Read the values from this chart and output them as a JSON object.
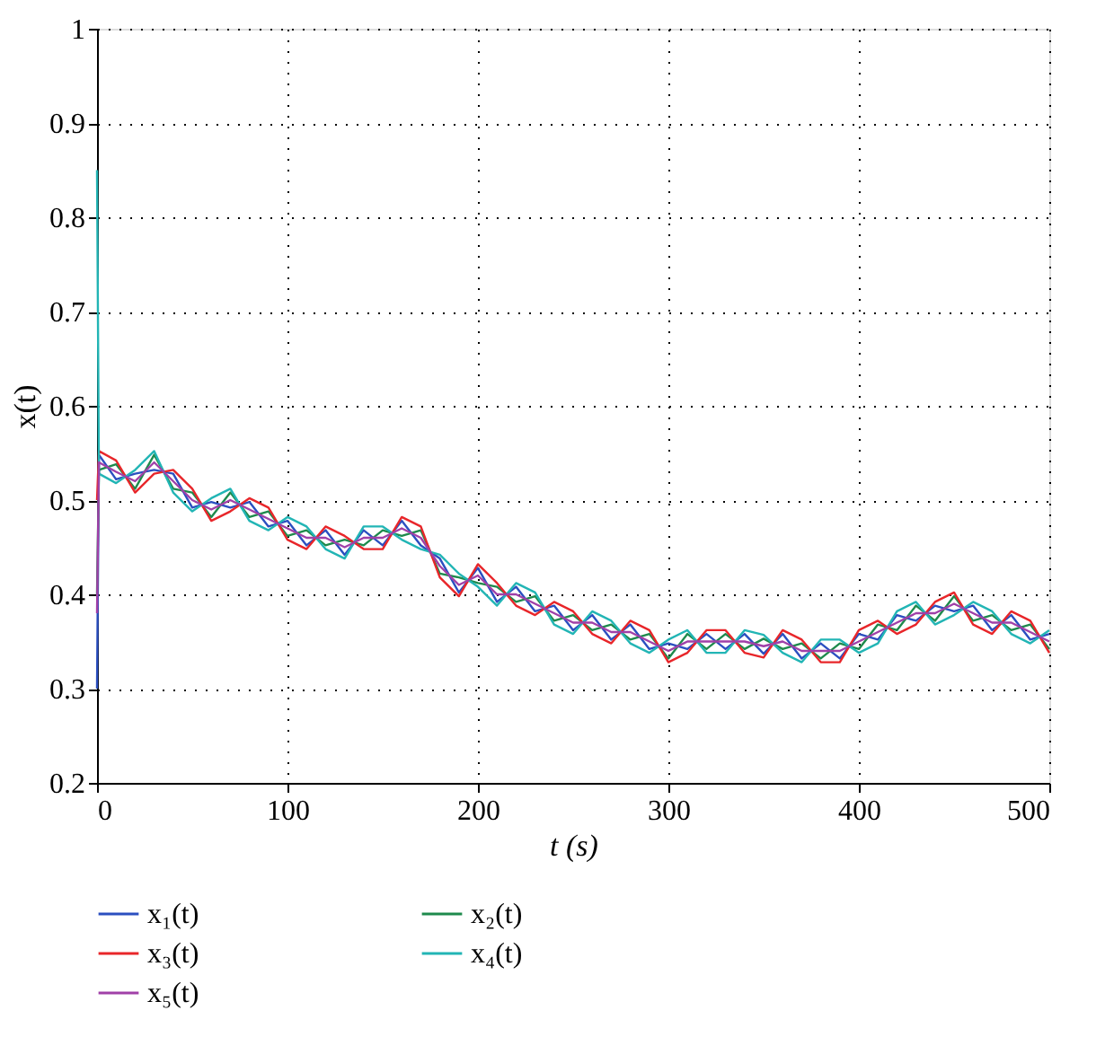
{
  "chart_data": {
    "type": "line",
    "xlabel": "t (s)",
    "ylabel": "x(t)",
    "x": [
      0,
      1,
      10,
      20,
      30,
      40,
      50,
      60,
      70,
      80,
      90,
      100,
      110,
      120,
      130,
      140,
      150,
      160,
      170,
      180,
      190,
      200,
      210,
      220,
      230,
      240,
      250,
      260,
      270,
      280,
      290,
      300,
      310,
      320,
      330,
      340,
      350,
      360,
      370,
      380,
      390,
      400,
      410,
      420,
      430,
      440,
      450,
      460,
      470,
      480,
      490,
      500
    ],
    "series": [
      {
        "name": "x₁(t)",
        "color": "#2b4fc0",
        "values": [
          0.3,
          0.548,
          0.522,
          0.528,
          0.532,
          0.528,
          0.492,
          0.498,
          0.492,
          0.498,
          0.472,
          0.478,
          0.452,
          0.468,
          0.442,
          0.468,
          0.452,
          0.478,
          0.452,
          0.438,
          0.402,
          0.428,
          0.392,
          0.408,
          0.382,
          0.388,
          0.362,
          0.378,
          0.352,
          0.368,
          0.342,
          0.348,
          0.342,
          0.358,
          0.342,
          0.358,
          0.337,
          0.358,
          0.332,
          0.348,
          0.332,
          0.358,
          0.352,
          0.378,
          0.372,
          0.388,
          0.382,
          0.388,
          0.362,
          0.378,
          0.352,
          0.358
        ]
      },
      {
        "name": "x₂(t)",
        "color": "#1e8a4c",
        "values": [
          0.4,
          0.532,
          0.538,
          0.512,
          0.548,
          0.512,
          0.508,
          0.482,
          0.508,
          0.482,
          0.488,
          0.462,
          0.468,
          0.452,
          0.458,
          0.452,
          0.468,
          0.462,
          0.468,
          0.422,
          0.418,
          0.412,
          0.408,
          0.392,
          0.398,
          0.372,
          0.378,
          0.362,
          0.368,
          0.352,
          0.358,
          0.332,
          0.358,
          0.342,
          0.358,
          0.342,
          0.353,
          0.342,
          0.348,
          0.332,
          0.348,
          0.342,
          0.368,
          0.362,
          0.388,
          0.372,
          0.398,
          0.372,
          0.378,
          0.362,
          0.368,
          0.342
        ]
      },
      {
        "name": "x₃(t)",
        "color": "#e8262a",
        "values": [
          0.5,
          0.552,
          0.542,
          0.508,
          0.528,
          0.532,
          0.512,
          0.478,
          0.488,
          0.502,
          0.492,
          0.458,
          0.448,
          0.472,
          0.462,
          0.448,
          0.448,
          0.482,
          0.472,
          0.418,
          0.398,
          0.432,
          0.412,
          0.388,
          0.378,
          0.392,
          0.382,
          0.358,
          0.348,
          0.372,
          0.362,
          0.328,
          0.338,
          0.362,
          0.362,
          0.338,
          0.333,
          0.362,
          0.352,
          0.328,
          0.328,
          0.362,
          0.372,
          0.358,
          0.368,
          0.392,
          0.402,
          0.368,
          0.358,
          0.382,
          0.372,
          0.338
        ]
      },
      {
        "name": "x₄(t)",
        "color": "#22b5b5",
        "values": [
          0.85,
          0.528,
          0.518,
          0.532,
          0.552,
          0.508,
          0.488,
          0.502,
          0.512,
          0.478,
          0.468,
          0.482,
          0.472,
          0.448,
          0.438,
          0.472,
          0.472,
          0.458,
          0.448,
          0.442,
          0.422,
          0.408,
          0.388,
          0.412,
          0.402,
          0.368,
          0.358,
          0.382,
          0.372,
          0.348,
          0.338,
          0.352,
          0.362,
          0.338,
          0.338,
          0.362,
          0.357,
          0.338,
          0.328,
          0.352,
          0.352,
          0.338,
          0.348,
          0.382,
          0.392,
          0.368,
          0.378,
          0.392,
          0.382,
          0.358,
          0.348,
          0.362
        ]
      },
      {
        "name": "x₅(t)",
        "color": "#a040a8",
        "values": [
          0.38,
          0.54,
          0.53,
          0.52,
          0.54,
          0.52,
          0.5,
          0.49,
          0.5,
          0.49,
          0.48,
          0.47,
          0.46,
          0.46,
          0.45,
          0.46,
          0.46,
          0.47,
          0.46,
          0.43,
          0.41,
          0.42,
          0.4,
          0.4,
          0.39,
          0.38,
          0.37,
          0.37,
          0.36,
          0.36,
          0.35,
          0.34,
          0.35,
          0.35,
          0.35,
          0.35,
          0.345,
          0.35,
          0.34,
          0.34,
          0.34,
          0.35,
          0.36,
          0.37,
          0.38,
          0.38,
          0.39,
          0.38,
          0.37,
          0.37,
          0.36,
          0.35
        ]
      }
    ],
    "xlim": [
      0,
      500
    ],
    "xticks": [
      0,
      100,
      200,
      300,
      400,
      500
    ],
    "ylim": [
      0.2,
      1
    ],
    "yticks": [
      0.2,
      0.3,
      0.4,
      0.5,
      0.6,
      0.7,
      0.8,
      0.9,
      {
        "value": 1,
        "label": "1"
      }
    ],
    "grid": true,
    "legend": "bottom",
    "marker": "none",
    "line_style": "solid"
  }
}
